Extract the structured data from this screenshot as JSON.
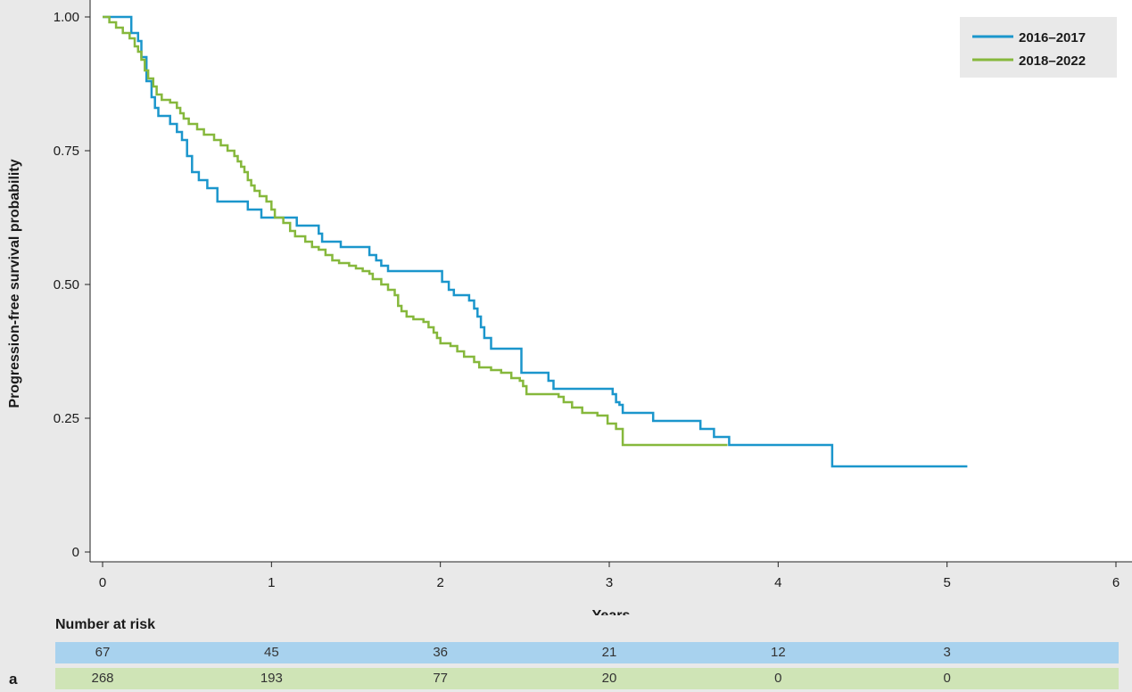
{
  "chart_data": {
    "type": "line",
    "xlabel": "Years",
    "ylabel": "Progression-free survival probability",
    "xlim": [
      0,
      6
    ],
    "ylim": [
      0,
      1
    ],
    "xticks": [
      "0",
      "1",
      "2",
      "3",
      "4",
      "5",
      "6"
    ],
    "yticks": [
      "0",
      "0.25",
      "0.50",
      "0.75",
      "1.00"
    ],
    "legend_position": "top-right",
    "series": [
      {
        "name": "2016–2017",
        "color": "#1b96cc",
        "step": true,
        "points": [
          [
            0,
            1.0
          ],
          [
            0.17,
            0.97
          ],
          [
            0.21,
            0.955
          ],
          [
            0.23,
            0.925
          ],
          [
            0.26,
            0.88
          ],
          [
            0.29,
            0.85
          ],
          [
            0.31,
            0.83
          ],
          [
            0.33,
            0.815
          ],
          [
            0.4,
            0.8
          ],
          [
            0.44,
            0.785
          ],
          [
            0.47,
            0.77
          ],
          [
            0.5,
            0.74
          ],
          [
            0.53,
            0.71
          ],
          [
            0.57,
            0.695
          ],
          [
            0.6,
            0.695
          ],
          [
            0.62,
            0.68
          ],
          [
            0.68,
            0.655
          ],
          [
            0.86,
            0.64
          ],
          [
            0.94,
            0.625
          ],
          [
            1.15,
            0.61
          ],
          [
            1.28,
            0.595
          ],
          [
            1.3,
            0.58
          ],
          [
            1.41,
            0.57
          ],
          [
            1.58,
            0.555
          ],
          [
            1.62,
            0.545
          ],
          [
            1.65,
            0.535
          ],
          [
            1.69,
            0.525
          ],
          [
            2.01,
            0.505
          ],
          [
            2.05,
            0.49
          ],
          [
            2.08,
            0.48
          ],
          [
            2.17,
            0.47
          ],
          [
            2.2,
            0.455
          ],
          [
            2.22,
            0.44
          ],
          [
            2.24,
            0.42
          ],
          [
            2.26,
            0.4
          ],
          [
            2.3,
            0.38
          ],
          [
            2.48,
            0.335
          ],
          [
            2.64,
            0.32
          ],
          [
            2.67,
            0.305
          ],
          [
            3.02,
            0.295
          ],
          [
            3.04,
            0.28
          ],
          [
            3.06,
            0.275
          ],
          [
            3.08,
            0.26
          ],
          [
            3.26,
            0.245
          ],
          [
            3.54,
            0.23
          ],
          [
            3.62,
            0.215
          ],
          [
            3.71,
            0.2
          ],
          [
            4.32,
            0.16
          ],
          [
            5.12,
            0.16
          ]
        ]
      },
      {
        "name": "2018–2022",
        "color": "#86b83c",
        "step": true,
        "points": [
          [
            0,
            1.0
          ],
          [
            0.04,
            0.99
          ],
          [
            0.08,
            0.98
          ],
          [
            0.12,
            0.97
          ],
          [
            0.16,
            0.96
          ],
          [
            0.19,
            0.945
          ],
          [
            0.21,
            0.935
          ],
          [
            0.23,
            0.92
          ],
          [
            0.25,
            0.9
          ],
          [
            0.27,
            0.885
          ],
          [
            0.3,
            0.87
          ],
          [
            0.32,
            0.855
          ],
          [
            0.35,
            0.845
          ],
          [
            0.4,
            0.84
          ],
          [
            0.44,
            0.83
          ],
          [
            0.46,
            0.82
          ],
          [
            0.48,
            0.81
          ],
          [
            0.51,
            0.8
          ],
          [
            0.56,
            0.79
          ],
          [
            0.6,
            0.78
          ],
          [
            0.66,
            0.77
          ],
          [
            0.7,
            0.76
          ],
          [
            0.74,
            0.75
          ],
          [
            0.78,
            0.74
          ],
          [
            0.8,
            0.73
          ],
          [
            0.82,
            0.72
          ],
          [
            0.84,
            0.71
          ],
          [
            0.86,
            0.695
          ],
          [
            0.88,
            0.685
          ],
          [
            0.9,
            0.675
          ],
          [
            0.93,
            0.665
          ],
          [
            0.97,
            0.655
          ],
          [
            1.0,
            0.64
          ],
          [
            1.02,
            0.625
          ],
          [
            1.07,
            0.615
          ],
          [
            1.11,
            0.6
          ],
          [
            1.14,
            0.59
          ],
          [
            1.2,
            0.58
          ],
          [
            1.24,
            0.57
          ],
          [
            1.28,
            0.565
          ],
          [
            1.32,
            0.555
          ],
          [
            1.36,
            0.545
          ],
          [
            1.4,
            0.54
          ],
          [
            1.46,
            0.535
          ],
          [
            1.5,
            0.53
          ],
          [
            1.54,
            0.525
          ],
          [
            1.58,
            0.52
          ],
          [
            1.6,
            0.51
          ],
          [
            1.65,
            0.5
          ],
          [
            1.69,
            0.49
          ],
          [
            1.73,
            0.48
          ],
          [
            1.75,
            0.46
          ],
          [
            1.77,
            0.45
          ],
          [
            1.8,
            0.44
          ],
          [
            1.84,
            0.435
          ],
          [
            1.9,
            0.43
          ],
          [
            1.93,
            0.42
          ],
          [
            1.96,
            0.41
          ],
          [
            1.98,
            0.4
          ],
          [
            2.0,
            0.39
          ],
          [
            2.06,
            0.385
          ],
          [
            2.1,
            0.375
          ],
          [
            2.14,
            0.365
          ],
          [
            2.2,
            0.355
          ],
          [
            2.23,
            0.345
          ],
          [
            2.3,
            0.34
          ],
          [
            2.36,
            0.335
          ],
          [
            2.42,
            0.325
          ],
          [
            2.47,
            0.32
          ],
          [
            2.49,
            0.31
          ],
          [
            2.51,
            0.295
          ],
          [
            2.7,
            0.29
          ],
          [
            2.73,
            0.28
          ],
          [
            2.78,
            0.27
          ],
          [
            2.84,
            0.26
          ],
          [
            2.93,
            0.255
          ],
          [
            2.99,
            0.24
          ],
          [
            3.04,
            0.23
          ],
          [
            3.08,
            0.2
          ],
          [
            3.7,
            0.2
          ]
        ]
      }
    ]
  },
  "risk_table": {
    "title": "Number at risk",
    "rows": [
      {
        "color": "#a8d2ee",
        "values": [
          "67",
          "45",
          "36",
          "21",
          "12",
          "3"
        ]
      },
      {
        "color": "#cfe4b6",
        "values": [
          "268",
          "193",
          "77",
          "20",
          "0",
          "0"
        ]
      }
    ]
  },
  "panel_label": "a"
}
